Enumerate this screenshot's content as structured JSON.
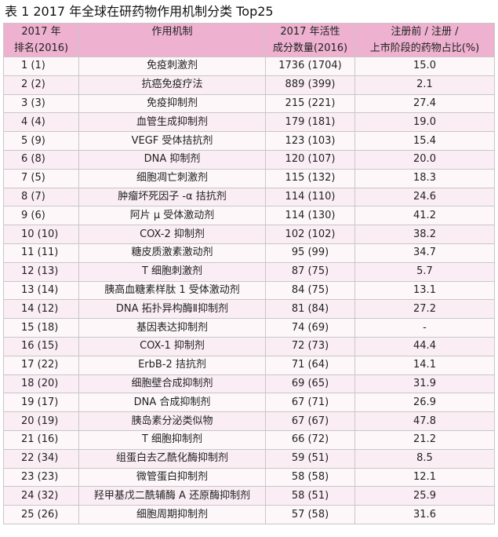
{
  "title": "表 1   2017 年全球在研药物作用机制分类 Top25",
  "headers": {
    "rank_line1": "2017 年",
    "rank_line2": "排名(2016)",
    "mechanism": "作用机制",
    "count_line1": "2017 年活性",
    "count_line2": "成分数量(2016)",
    "ratio_line1": "注册前 / 注册 /",
    "ratio_line2": "上市阶段的药物占比(%)"
  },
  "rows": [
    {
      "rank": "1 (1)",
      "mechanism": "免疫刺激剂",
      "count": "1736 (1704)",
      "ratio": "15.0"
    },
    {
      "rank": "2 (2)",
      "mechanism": "抗癌免疫疗法",
      "count": "889 (399)",
      "ratio": "2.1"
    },
    {
      "rank": "3 (3)",
      "mechanism": "免疫抑制剂",
      "count": "215 (221)",
      "ratio": "27.4"
    },
    {
      "rank": "4 (4)",
      "mechanism": "血管生成抑制剂",
      "count": "179 (181)",
      "ratio": "19.0"
    },
    {
      "rank": "5 (9)",
      "mechanism": "VEGF 受体拮抗剂",
      "count": "123 (103)",
      "ratio": "15.4"
    },
    {
      "rank": "6 (8)",
      "mechanism": "DNA 抑制剂",
      "count": "120 (107)",
      "ratio": "20.0"
    },
    {
      "rank": "7 (5)",
      "mechanism": "细胞凋亡刺激剂",
      "count": "115 (132)",
      "ratio": "18.3"
    },
    {
      "rank": "8 (7)",
      "mechanism": "肿瘤坏死因子 -α 拮抗剂",
      "count": "114 (110)",
      "ratio": "24.6"
    },
    {
      "rank": "9 (6)",
      "mechanism": "阿片 μ 受体激动剂",
      "count": "114 (130)",
      "ratio": "41.2"
    },
    {
      "rank": "10 (10)",
      "mechanism": "COX-2 抑制剂",
      "count": "102 (102)",
      "ratio": "38.2"
    },
    {
      "rank": "11 (11)",
      "mechanism": "糖皮质激素激动剂",
      "count": "95 (99)",
      "ratio": "34.7"
    },
    {
      "rank": "12 (13)",
      "mechanism": "T 细胞刺激剂",
      "count": "87 (75)",
      "ratio": "5.7"
    },
    {
      "rank": "13 (14)",
      "mechanism": "胰高血糖素样肽 1 受体激动剂",
      "count": "84 (75)",
      "ratio": "13.1"
    },
    {
      "rank": "14 (12)",
      "mechanism": "DNA 拓扑异构酶Ⅱ抑制剂",
      "count": "81 (84)",
      "ratio": "27.2"
    },
    {
      "rank": "15 (18)",
      "mechanism": "基因表达抑制剂",
      "count": "74 (69)",
      "ratio": "-"
    },
    {
      "rank": "16 (15)",
      "mechanism": "COX-1 抑制剂",
      "count": "72 (73)",
      "ratio": "44.4"
    },
    {
      "rank": "17 (22)",
      "mechanism": "ErbB-2 拮抗剂",
      "count": "71 (64)",
      "ratio": "14.1"
    },
    {
      "rank": "18 (20)",
      "mechanism": "细胞壁合成抑制剂",
      "count": "69 (65)",
      "ratio": "31.9"
    },
    {
      "rank": "19 (17)",
      "mechanism": "DNA 合成抑制剂",
      "count": "67 (71)",
      "ratio": "26.9"
    },
    {
      "rank": "20 (19)",
      "mechanism": "胰岛素分泌类似物",
      "count": "67 (67)",
      "ratio": "47.8"
    },
    {
      "rank": "21 (16)",
      "mechanism": "T 细胞抑制剂",
      "count": "66 (72)",
      "ratio": "21.2"
    },
    {
      "rank": "22 (34)",
      "mechanism": "组蛋白去乙酰化酶抑制剂",
      "count": "59 (51)",
      "ratio": "8.5"
    },
    {
      "rank": "23 (23)",
      "mechanism": "微管蛋白抑制剂",
      "count": "58 (58)",
      "ratio": "12.1"
    },
    {
      "rank": "24 (32)",
      "mechanism": "羟甲基戊二酰辅酶 A 还原酶抑制剂",
      "count": "58 (51)",
      "ratio": "25.9"
    },
    {
      "rank": "25 (26)",
      "mechanism": "细胞周期抑制剂",
      "count": "57 (58)",
      "ratio": "31.6"
    }
  ]
}
